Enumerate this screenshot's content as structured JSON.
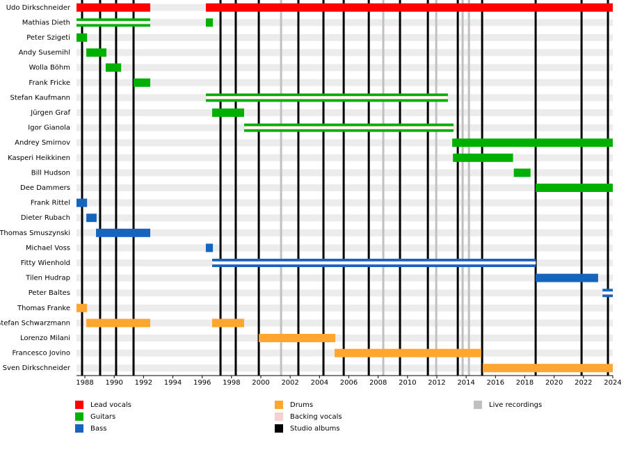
{
  "chart_data": {
    "type": "timeline",
    "xlim": [
      1987.43,
      2024
    ],
    "xticks": [
      1988,
      1990,
      1992,
      1994,
      1996,
      1998,
      2000,
      2002,
      2004,
      2006,
      2008,
      2010,
      2012,
      2014,
      2016,
      2018,
      2020,
      2022,
      2024
    ],
    "roles": [
      {
        "name": "Lead vocals",
        "color": "#ff0000"
      },
      {
        "name": "Guitars",
        "color": "#00b000"
      },
      {
        "name": "Bass",
        "color": "#1565c0"
      },
      {
        "name": "Drums",
        "color": "#ffa530"
      },
      {
        "name": "Backing vocals",
        "color": "#f8d0d0"
      }
    ],
    "studio_albums": {
      "name": "Studio albums",
      "color": "#000000",
      "years": [
        1987.81,
        1989.04,
        1990.13,
        1991.32,
        1997.25,
        1998.29,
        1999.86,
        2002.56,
        2004.27,
        2005.65,
        2007.36,
        2009.49,
        2011.39,
        2013.43,
        2015.09,
        2018.74,
        2021.87,
        2023.67
      ]
    },
    "live_recordings": {
      "name": "Live recordings",
      "color": "#c0c0c0",
      "years": [
        2001.38,
        2008.35,
        2011.96,
        2013.76,
        2014.19
      ]
    },
    "members": [
      {
        "name": "Udo Dirkschneider",
        "periods": [
          {
            "start": 1987.43,
            "end": 1992.46,
            "roles": [
              "Lead vocals"
            ]
          },
          {
            "start": 1996.25,
            "end": 2024,
            "roles": [
              "Lead vocals"
            ]
          }
        ]
      },
      {
        "name": "Mathias Dieth",
        "periods": [
          {
            "start": 1987.43,
            "end": 1992.46,
            "roles": [
              "Guitars",
              "Backing vocals"
            ]
          },
          {
            "start": 1996.25,
            "end": 1996.73,
            "roles": [
              "Guitars"
            ]
          }
        ]
      },
      {
        "name": "Peter Szigeti",
        "periods": [
          {
            "start": 1987.43,
            "end": 1988.15,
            "roles": [
              "Guitars"
            ]
          }
        ]
      },
      {
        "name": "Andy Susemihl",
        "periods": [
          {
            "start": 1988.1,
            "end": 1989.47,
            "roles": [
              "Guitars"
            ]
          }
        ]
      },
      {
        "name": "Wolla Böhm",
        "periods": [
          {
            "start": 1989.42,
            "end": 1990.47,
            "roles": [
              "Guitars"
            ]
          }
        ]
      },
      {
        "name": "Frank Fricke",
        "periods": [
          {
            "start": 1991.32,
            "end": 1992.46,
            "roles": [
              "Guitars"
            ]
          }
        ]
      },
      {
        "name": "Stefan Kaufmann",
        "periods": [
          {
            "start": 1996.25,
            "end": 2012.76,
            "roles": [
              "Guitars",
              "Backing vocals"
            ]
          }
        ]
      },
      {
        "name": "Jürgen Graf",
        "periods": [
          {
            "start": 1996.68,
            "end": 1998.86,
            "roles": [
              "Guitars"
            ]
          }
        ]
      },
      {
        "name": "Igor Gianola",
        "periods": [
          {
            "start": 1998.86,
            "end": 2013.14,
            "roles": [
              "Guitars",
              "Backing vocals"
            ]
          }
        ]
      },
      {
        "name": "Andrey Smirnov",
        "periods": [
          {
            "start": 2013.05,
            "end": 2024,
            "roles": [
              "Guitars"
            ]
          }
        ]
      },
      {
        "name": "Kasperi Heikkinen",
        "periods": [
          {
            "start": 2013.1,
            "end": 2017.2,
            "roles": [
              "Guitars"
            ]
          }
        ]
      },
      {
        "name": "Bill Hudson",
        "periods": [
          {
            "start": 2017.25,
            "end": 2018.39,
            "roles": [
              "Guitars"
            ]
          }
        ]
      },
      {
        "name": "Dee Dammers",
        "periods": [
          {
            "start": 2018.74,
            "end": 2024,
            "roles": [
              "Guitars"
            ]
          }
        ]
      },
      {
        "name": "Frank Rittel",
        "periods": [
          {
            "start": 1987.43,
            "end": 1988.15,
            "roles": [
              "Bass"
            ]
          }
        ]
      },
      {
        "name": "Dieter Rubach",
        "periods": [
          {
            "start": 1988.1,
            "end": 1988.8,
            "roles": [
              "Bass"
            ]
          }
        ]
      },
      {
        "name": "Thomas Smuszynski",
        "periods": [
          {
            "start": 1988.76,
            "end": 1992.46,
            "roles": [
              "Bass"
            ]
          }
        ]
      },
      {
        "name": "Michael Voss",
        "periods": [
          {
            "start": 1996.25,
            "end": 1996.73,
            "roles": [
              "Bass"
            ]
          }
        ]
      },
      {
        "name": "Fitty Wienhold",
        "periods": [
          {
            "start": 1996.68,
            "end": 2018.74,
            "roles": [
              "Bass",
              "Backing vocals"
            ]
          }
        ]
      },
      {
        "name": "Tilen Hudrap",
        "periods": [
          {
            "start": 2018.74,
            "end": 2023.0,
            "roles": [
              "Bass"
            ]
          }
        ]
      },
      {
        "name": "Peter Baltes",
        "periods": [
          {
            "start": 2023.3,
            "end": 2024,
            "roles": [
              "Bass",
              "Backing vocals"
            ]
          }
        ]
      },
      {
        "name": "Thomas Franke",
        "periods": [
          {
            "start": 1987.43,
            "end": 1988.15,
            "roles": [
              "Drums"
            ]
          }
        ]
      },
      {
        "name": "Stefan Schwarzmann",
        "periods": [
          {
            "start": 1988.1,
            "end": 1992.46,
            "roles": [
              "Drums"
            ]
          },
          {
            "start": 1996.68,
            "end": 1998.86,
            "roles": [
              "Drums"
            ]
          }
        ]
      },
      {
        "name": "Lorenzo Milani",
        "periods": [
          {
            "start": 1999.86,
            "end": 2005.08,
            "roles": [
              "Drums"
            ]
          }
        ]
      },
      {
        "name": "Francesco Jovino",
        "periods": [
          {
            "start": 2005.03,
            "end": 2015.04,
            "roles": [
              "Drums"
            ]
          }
        ]
      },
      {
        "name": "Sven Dirkschneider",
        "periods": [
          {
            "start": 2015.13,
            "end": 2024,
            "roles": [
              "Drums"
            ]
          }
        ]
      }
    ]
  }
}
